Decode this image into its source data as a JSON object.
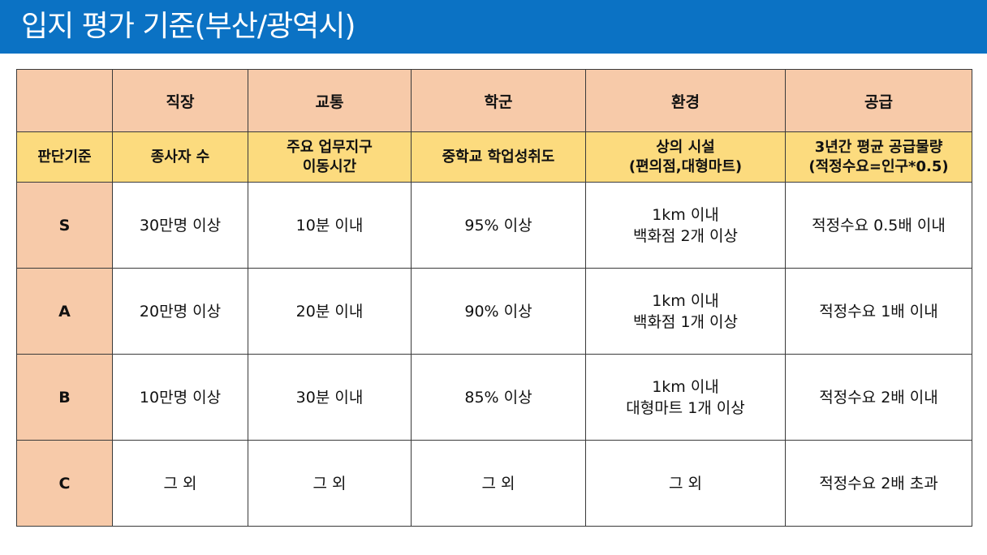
{
  "title": "입지 평가 기준(부산/광역시)",
  "header": [
    "직장",
    "교통",
    "학군",
    "환경",
    "공급"
  ],
  "criteria_label": "판단기준",
  "criteria": [
    {
      "lines": [
        "종사자 수"
      ]
    },
    {
      "lines": [
        "주요 업무지구",
        "이동시간"
      ]
    },
    {
      "lines": [
        "중학교 학업성취도"
      ]
    },
    {
      "lines": [
        "상의 시설",
        "(편의점,대형마트)"
      ]
    },
    {
      "lines": [
        "3년간 평균 공급물량",
        "(적정수요=인구*0.5)"
      ]
    }
  ],
  "rows": [
    {
      "grade": "S",
      "cells": [
        [
          "30만명 이상"
        ],
        [
          "10분 이내"
        ],
        [
          "95% 이상"
        ],
        [
          "1km 이내",
          "백화점 2개 이상"
        ],
        [
          "적정수요 0.5배 이내"
        ]
      ]
    },
    {
      "grade": "A",
      "cells": [
        [
          "20만명 이상"
        ],
        [
          "20분 이내"
        ],
        [
          "90% 이상"
        ],
        [
          "1km 이내",
          "백화점 1개 이상"
        ],
        [
          "적정수요 1배 이내"
        ]
      ]
    },
    {
      "grade": "B",
      "cells": [
        [
          "10만명 이상"
        ],
        [
          "30분 이내"
        ],
        [
          "85% 이상"
        ],
        [
          "1km 이내",
          "대형마트 1개 이상"
        ],
        [
          "적정수요 2배 이내"
        ]
      ]
    },
    {
      "grade": "C",
      "cells": [
        [
          "그 외"
        ],
        [
          "그 외"
        ],
        [
          "그 외"
        ],
        [
          "그 외"
        ],
        [
          "적정수요 2배 초과"
        ]
      ]
    }
  ],
  "colors": {
    "title_bar": "#0b72c4",
    "header_fill": "#f7caa9",
    "criteria_fill": "#fcdb7e"
  }
}
